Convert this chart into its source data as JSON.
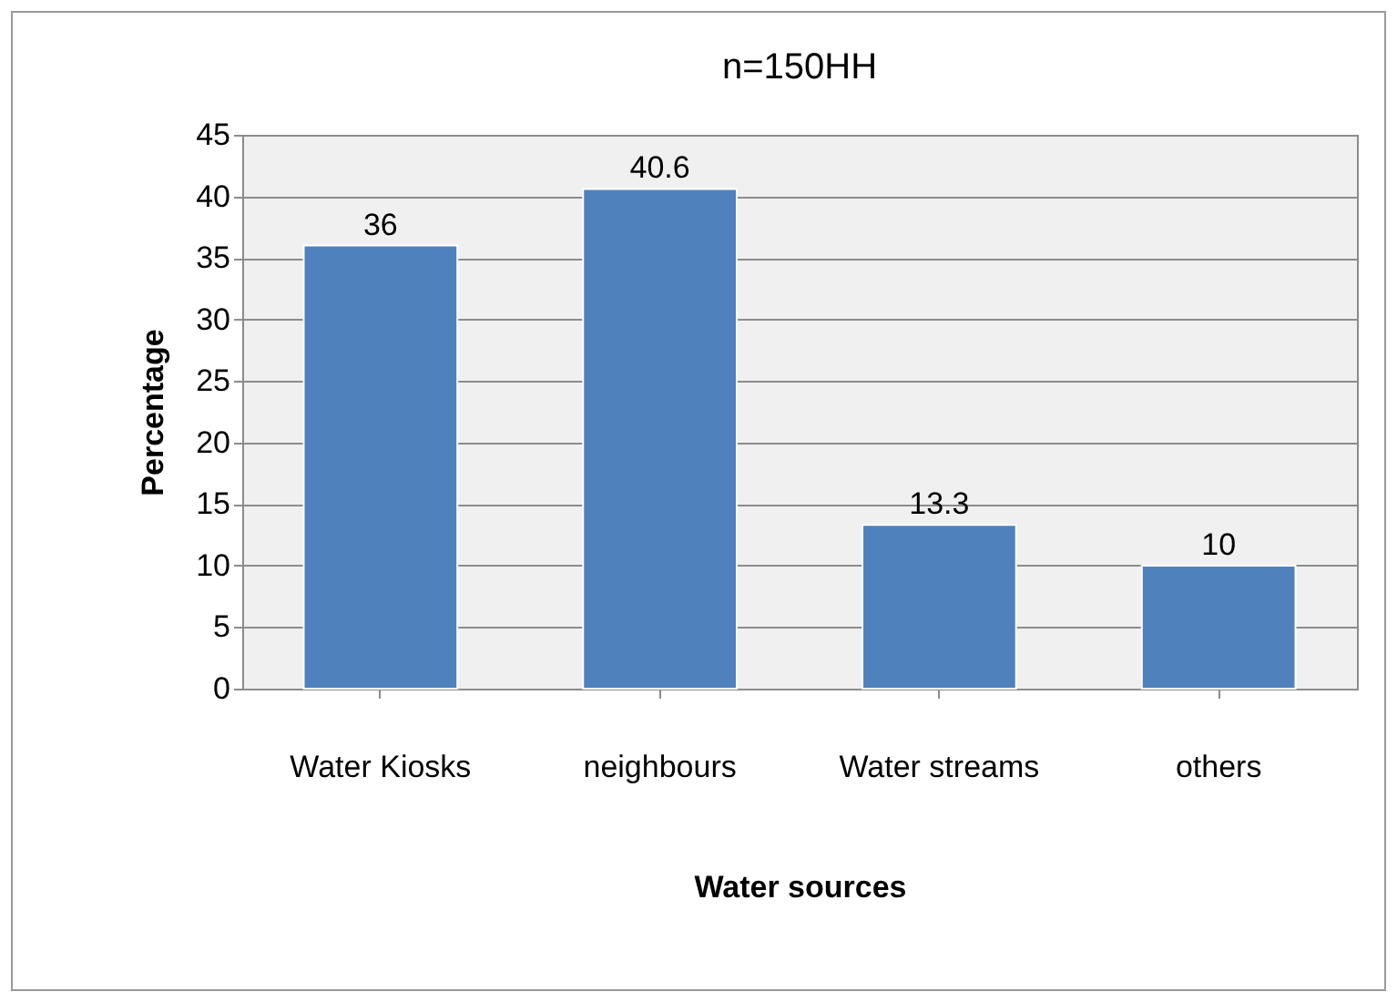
{
  "chart_data": {
    "type": "bar",
    "title": "n=150HH",
    "xlabel": "Water sources",
    "ylabel": "Percentage",
    "categories": [
      "Water Kiosks",
      "neighbours",
      "Water streams",
      "others"
    ],
    "values": [
      36,
      40.6,
      13.3,
      10
    ],
    "color": "#4f81bd",
    "ylim": [
      0,
      45
    ],
    "yticks": [
      0,
      5,
      10,
      15,
      20,
      25,
      30,
      35,
      40,
      45
    ],
    "grid": "y",
    "data_labels": true
  }
}
